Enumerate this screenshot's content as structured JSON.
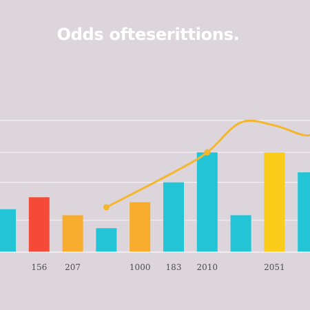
{
  "chart_data": {
    "type": "bar",
    "title": "Odds ofteserittions.",
    "xlabel": "",
    "ylabel": "",
    "categories": [
      "",
      "156",
      "207",
      "",
      "1000",
      "183",
      "2010",
      "",
      "2051",
      ""
    ],
    "values": [
      43,
      55,
      37,
      24,
      50,
      70,
      100,
      37,
      100,
      80
    ],
    "ylim": [
      0,
      145
    ],
    "grid": true,
    "bar_colors": [
      "#22c4d5",
      "#f44a37",
      "#f8ac2e",
      "#22c4d5",
      "#f8ac2e",
      "#22c4d5",
      "#22c4d5",
      "#22c4d5",
      "#fbcd1a",
      "#22c4d5"
    ],
    "overlay_line": {
      "color": "#f4b62c",
      "x": [
        3,
        5,
        6,
        7,
        8,
        9,
        9.6
      ],
      "y": [
        45,
        80,
        100,
        130,
        127,
        117,
        130
      ]
    }
  }
}
